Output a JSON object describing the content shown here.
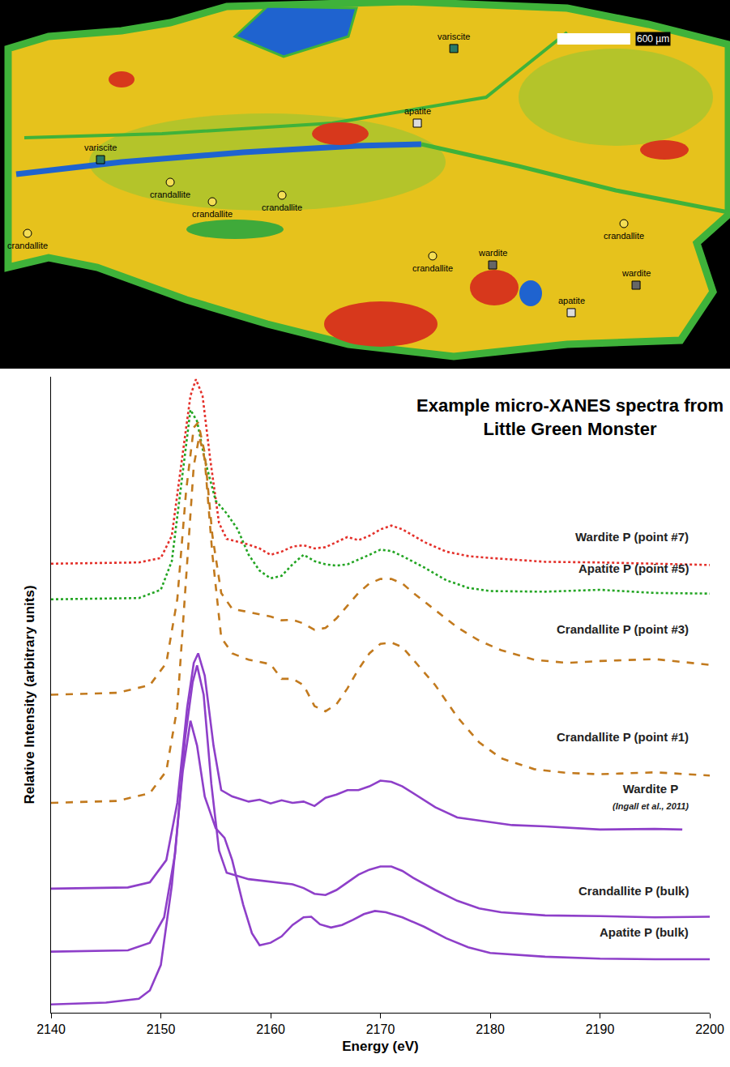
{
  "chart_data": [
    {
      "type": "scatter",
      "xlim": [
        0,
        6000
      ],
      "ylim": [
        0,
        3030
      ],
      "tick_labels": false,
      "scale_bar": {
        "label": "600 µm",
        "length": 600,
        "x": 4580,
        "y": 2711
      },
      "series": [
        {
          "name": "variscite",
          "marker": "square",
          "color": "#2a7a66",
          "x": [
            3730,
            826
          ],
          "y": [
            2631,
            1718
          ]
        },
        {
          "name": "apatite",
          "marker": "square",
          "color": "#dcdcdc",
          "x": [
            3430,
            4695
          ],
          "y": [
            2018,
            460
          ]
        },
        {
          "name": "crandallite",
          "marker": "circle",
          "color": "#f4de55",
          "x": [
            1399,
            1745,
            2318,
            226,
            5128,
            3556
          ],
          "y": [
            1532,
            1372,
            1425,
            1112,
            1192,
            926
          ]
        },
        {
          "name": "wardite",
          "marker": "square",
          "color": "#666666",
          "x": [
            4049,
            5228
          ],
          "y": [
            852,
            686
          ]
        }
      ]
    },
    {
      "type": "line",
      "title": "Example micro-XANES spectra from\nLittle Green Monster",
      "x_label": "Energy (eV)",
      "y_label": "Relative Intensity (arbitrary units)",
      "xlim": [
        2140,
        2200
      ],
      "xticks": [
        2140,
        2150,
        2160,
        2170,
        2180,
        2190,
        2200
      ],
      "ylim": [
        0,
        100
      ],
      "yticks": [],
      "tick_labels": "x",
      "grid": false,
      "series": [
        {
          "name": "Wardite P (point #7)",
          "color": "#e4302a",
          "line_style": "dotted",
          "x": [
            2140,
            2148,
            2150,
            2151,
            2152,
            2152.7,
            2153.2,
            2153.8,
            2154.5,
            2155.3,
            2156,
            2157,
            2158,
            2159,
            2160,
            2161,
            2162,
            2163,
            2164,
            2165,
            2166,
            2167,
            2168,
            2169,
            2170,
            2171,
            2172,
            2174,
            2176,
            2178,
            2180,
            2185,
            2190,
            2195,
            2200
          ],
          "y": [
            70.6,
            70.8,
            71.5,
            75,
            88,
            97,
            99.6,
            97,
            87,
            77,
            74.5,
            74,
            73.6,
            73,
            72,
            72.5,
            73.3,
            73.5,
            73,
            73.2,
            74,
            74.8,
            74.3,
            75,
            76,
            76.6,
            76,
            74,
            72.5,
            71.8,
            71.5,
            70.9,
            70.8,
            70.6,
            70.4
          ]
        },
        {
          "name": "Apatite P (point #5)",
          "color": "#23a523",
          "line_style": "dotted",
          "x": [
            2140,
            2148,
            2150,
            2151,
            2152,
            2152.7,
            2153.3,
            2154,
            2155,
            2156,
            2157,
            2158,
            2159,
            2160,
            2161,
            2162,
            2163,
            2164,
            2165,
            2166,
            2167,
            2168,
            2169,
            2170,
            2171,
            2172,
            2174,
            2176,
            2178,
            2180,
            2185,
            2190,
            2195,
            2200
          ],
          "y": [
            65,
            65.2,
            66.5,
            71,
            85,
            94.8,
            93,
            87,
            80.5,
            78.5,
            76,
            72,
            69.5,
            68.3,
            68.7,
            70.5,
            72,
            71,
            70.5,
            70.3,
            70.5,
            71.2,
            72,
            72.8,
            72.6,
            71.8,
            70,
            68,
            66.8,
            66.3,
            66.2,
            66.5,
            66,
            65.9
          ]
        },
        {
          "name": "Crandallite P (point #3)",
          "color": "#c27a1e",
          "line_style": "dashed",
          "x": [
            2140,
            2146,
            2149,
            2150.5,
            2151.5,
            2152.3,
            2153,
            2153.4,
            2154,
            2154.7,
            2155.5,
            2156.5,
            2158,
            2160,
            2161,
            2162,
            2163,
            2164,
            2165,
            2166,
            2167,
            2168,
            2169,
            2170,
            2171,
            2172,
            2173,
            2175,
            2177,
            2179,
            2181,
            2184,
            2187,
            2190,
            2195,
            2200
          ],
          "y": [
            50,
            50.3,
            51.5,
            55,
            65,
            82,
            92,
            92.8,
            88,
            75,
            66,
            63.5,
            63,
            62.3,
            61.7,
            61.8,
            61.2,
            60.2,
            60.5,
            62,
            64,
            66,
            67.5,
            68.2,
            68.2,
            67.5,
            66,
            63.3,
            60.6,
            58.5,
            57,
            55.5,
            55,
            55.3,
            55.6,
            54.7
          ]
        },
        {
          "name": "Crandallite P (point #1)",
          "color": "#c27a1e",
          "line_style": "dashed",
          "x": [
            2140,
            2146,
            2149,
            2150.5,
            2151.5,
            2152.3,
            2153,
            2153.5,
            2154,
            2154.7,
            2155.5,
            2156.5,
            2158,
            2160,
            2161,
            2162,
            2163,
            2164,
            2165,
            2166,
            2167,
            2168,
            2169,
            2170,
            2171,
            2172,
            2173,
            2175,
            2177,
            2179,
            2181,
            2184,
            2187,
            2190,
            2195,
            2200
          ],
          "y": [
            33,
            33.3,
            34.5,
            38,
            48,
            68,
            86,
            90.6,
            87,
            72,
            59,
            56.5,
            55.5,
            54.8,
            52.5,
            52.5,
            51.5,
            48.2,
            47.4,
            48.5,
            51,
            54,
            56.5,
            58,
            58.2,
            57.5,
            55.5,
            51.5,
            46.5,
            42.5,
            40,
            38.3,
            37.7,
            37.5,
            37.8,
            37.3
          ]
        },
        {
          "name": "Wardite P",
          "source": "(Ingall et al., 2011)",
          "color": "#8e3fc9",
          "line_style": "solid",
          "x": [
            2140,
            2147,
            2149,
            2150.5,
            2151.5,
            2152.4,
            2153,
            2153.4,
            2154,
            2154.8,
            2155.5,
            2156.5,
            2158,
            2159,
            2160,
            2161,
            2162,
            2163,
            2164,
            2165,
            2166,
            2167,
            2168,
            2169,
            2170,
            2171,
            2172,
            2173,
            2175,
            2177,
            2179,
            2182,
            2185,
            2190,
            2195,
            2197.5
          ],
          "y": [
            19.5,
            19.7,
            20.5,
            24,
            33,
            48,
            55,
            56.5,
            53,
            42,
            35,
            34,
            33.2,
            33.5,
            32.9,
            33.4,
            33,
            33.2,
            32.5,
            33.8,
            34.3,
            35,
            35,
            35.6,
            36.5,
            36.3,
            35.6,
            34.5,
            32.3,
            30.7,
            30.2,
            29.5,
            29.3,
            28.8,
            28.9,
            28.8
          ]
        },
        {
          "name": "Crandallite P (bulk)",
          "color": "#8e3fc9",
          "line_style": "solid",
          "x": [
            2140,
            2147,
            2149,
            2150.3,
            2151.3,
            2152.2,
            2152.9,
            2153.3,
            2153.9,
            2154.6,
            2155.3,
            2156,
            2158,
            2160,
            2162,
            2163,
            2164,
            2165,
            2166,
            2167,
            2168,
            2169,
            2170,
            2171,
            2172,
            2173,
            2175,
            2177,
            2179,
            2181,
            2185,
            2190,
            2195,
            2200
          ],
          "y": [
            9.6,
            9.8,
            11,
            15,
            25,
            43,
            52,
            54.6,
            50,
            36,
            25.5,
            22,
            21,
            20.6,
            20.2,
            19.6,
            18.7,
            18.5,
            19.3,
            20.5,
            21.7,
            22.5,
            23,
            23,
            22.3,
            21.2,
            19.3,
            17.6,
            16.4,
            15.8,
            15.3,
            15.2,
            15,
            15.1
          ]
        },
        {
          "name": "Apatite P (bulk)",
          "color": "#8e3fc9",
          "line_style": "solid",
          "x": [
            2140,
            2145,
            2148,
            2149,
            2150,
            2151,
            2152,
            2152.7,
            2153.3,
            2154,
            2155,
            2155.8,
            2156.5,
            2157.5,
            2158.3,
            2159,
            2160,
            2161,
            2162,
            2163,
            2163.7,
            2164.5,
            2165.5,
            2166.5,
            2167.5,
            2168.5,
            2169.5,
            2170.5,
            2172,
            2174,
            2176,
            2178,
            2180,
            2185,
            2190,
            2195,
            2200
          ],
          "y": [
            1.3,
            1.6,
            2.2,
            3.5,
            7.5,
            20,
            38,
            45.9,
            42,
            34,
            29,
            27.5,
            24,
            17,
            12.5,
            10.6,
            11,
            12,
            13.8,
            15,
            15.1,
            13.9,
            13.4,
            13.8,
            14.6,
            15.5,
            16,
            15.8,
            15,
            13.5,
            11.7,
            10.3,
            9.4,
            8.8,
            8.5,
            8.4,
            8.4
          ]
        }
      ]
    }
  ]
}
